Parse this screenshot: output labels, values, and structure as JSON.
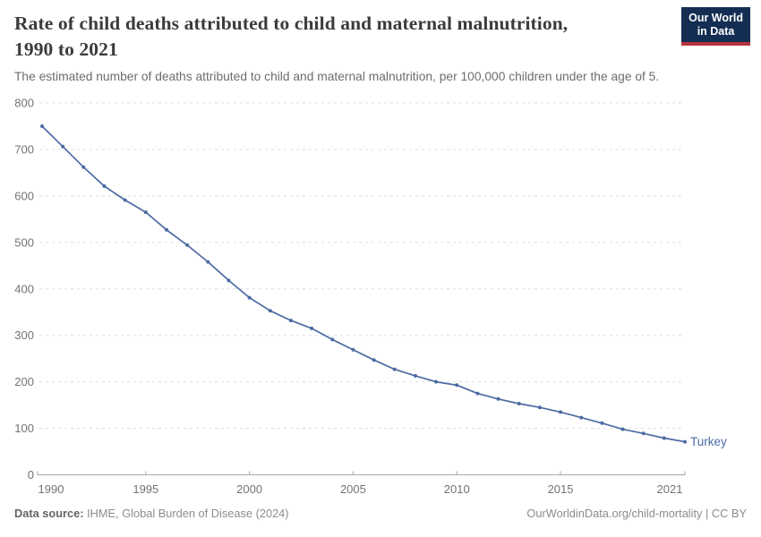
{
  "header": {
    "title_line1": "Rate of child deaths attributed to child and maternal malnutrition,",
    "title_line2": "1990 to 2021",
    "subtitle": "The estimated number of deaths attributed to child and maternal malnutrition, per 100,000 children under the age of 5.",
    "logo": {
      "line1": "Our World",
      "line2": "in Data",
      "bg_color": "#132e52",
      "accent_color": "#b5353c"
    }
  },
  "chart_data": {
    "type": "line",
    "title": "Rate of child deaths attributed to child and maternal malnutrition, 1990 to 2021",
    "xlabel": "",
    "ylabel": "",
    "xlim": [
      1990,
      2021
    ],
    "ylim": [
      0,
      800
    ],
    "yticks": [
      0,
      100,
      200,
      300,
      400,
      500,
      600,
      700,
      800
    ],
    "xticks": [
      1990,
      1995,
      2000,
      2005,
      2010,
      2015,
      2021
    ],
    "grid": "horizontal-dashed",
    "legend_position": "end-of-line-label",
    "axis_color": "#a8a8a8",
    "grid_color": "#dddddd",
    "tick_label_color": "#737373",
    "series": [
      {
        "name": "Turkey",
        "color": "#4c6ba3",
        "x": [
          1990,
          1991,
          1992,
          1993,
          1994,
          1995,
          1996,
          1997,
          1998,
          1999,
          2000,
          2001,
          2002,
          2003,
          2004,
          2005,
          2006,
          2007,
          2008,
          2009,
          2010,
          2011,
          2012,
          2013,
          2014,
          2015,
          2016,
          2017,
          2018,
          2019,
          2020,
          2021
        ],
        "values": [
          750,
          706,
          662,
          621,
          591,
          565,
          527,
          494,
          458,
          418,
          381,
          353,
          332,
          315,
          291,
          269,
          247,
          227,
          213,
          200,
          193,
          175,
          163,
          153,
          145,
          135,
          123,
          111,
          98,
          89,
          79,
          71
        ]
      }
    ]
  },
  "footer": {
    "datasource_label": "Data source:",
    "datasource_value": " IHME, Global Burden of Disease (2024)",
    "link": "OurWorldinData.org/child-mortality | CC BY"
  }
}
